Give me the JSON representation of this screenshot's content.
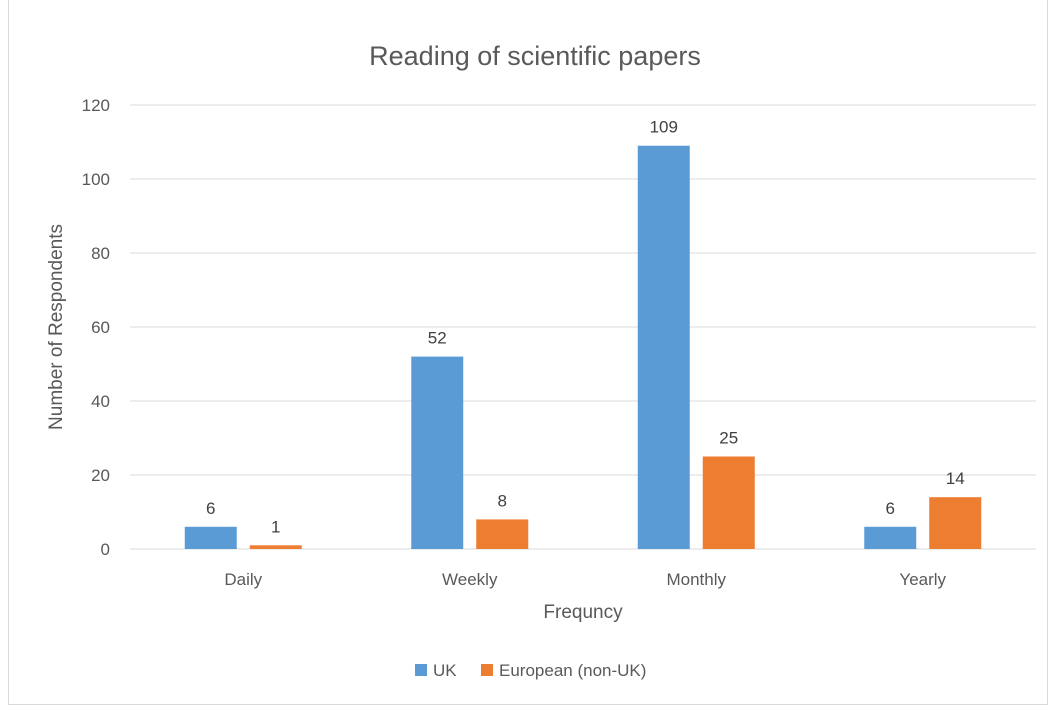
{
  "chart_data": {
    "type": "bar",
    "title": "Reading of scientific papers",
    "xlabel": "Frequncy",
    "ylabel": "Number of Respondents",
    "categories": [
      "Daily",
      "Weekly",
      "Monthly",
      "Yearly"
    ],
    "series": [
      {
        "name": "UK",
        "values": [
          6,
          52,
          109,
          6
        ],
        "color": "#5b9bd5"
      },
      {
        "name": "European (non-UK)",
        "values": [
          1,
          8,
          25,
          14
        ],
        "color": "#ed7d31"
      }
    ],
    "ylim": [
      0,
      120
    ],
    "yticks": [
      0,
      20,
      40,
      60,
      80,
      100,
      120
    ],
    "grid": true,
    "legend_position": "bottom",
    "gridline_color": "#d9d9d9",
    "text_color": "#595959"
  }
}
